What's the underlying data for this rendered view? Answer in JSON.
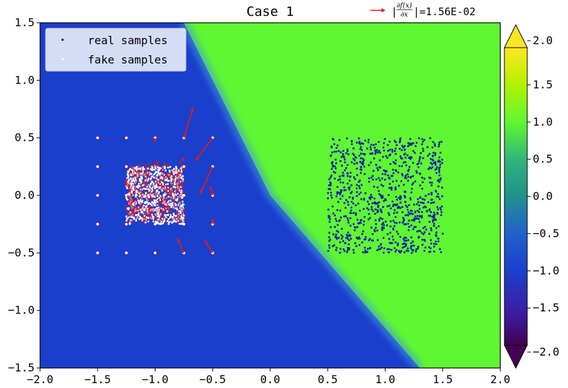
{
  "chart_data": {
    "type": "scatter",
    "title": "Case 1",
    "xlim": [
      -2.0,
      2.0
    ],
    "ylim": [
      -1.5,
      1.5
    ],
    "xticks": [
      "−2.0",
      "−1.5",
      "−1.0",
      "−0.5",
      "0.0",
      "0.5",
      "1.0",
      "1.5",
      "2.0"
    ],
    "yticks": [
      "−1.5",
      "−1.0",
      "−0.5",
      "0.0",
      "0.5",
      "1.0",
      "1.5"
    ],
    "xtick_values": [
      -2.0,
      -1.5,
      -1.0,
      -0.5,
      0.0,
      0.5,
      1.0,
      1.5,
      2.0
    ],
    "ytick_values": [
      -1.5,
      -1.0,
      -0.5,
      0.0,
      0.5,
      1.0,
      1.5
    ],
    "colorbar": {
      "range": [
        -2.0,
        2.0
      ],
      "ticks": [
        "−2.0",
        "−1.5",
        "−1.0",
        "−0.5",
        "0.0",
        "0.5",
        "1.0",
        "1.5",
        "2.0"
      ],
      "tick_values": [
        -2.0,
        -1.5,
        -1.0,
        -0.5,
        0.0,
        0.5,
        1.0,
        1.5,
        2.0
      ],
      "extend": "both",
      "colormap": "viridis-like"
    },
    "background": {
      "description": "decision surface",
      "low_color": "#1a3fcc",
      "high_color": "#5ff731",
      "boundary_line": [
        [
          -0.75,
          1.5
        ],
        [
          0.0,
          0.0
        ],
        [
          1.3,
          -1.5
        ]
      ]
    },
    "series": [
      {
        "name": "real samples",
        "kind": "uniform_square",
        "x_range": [
          0.5,
          1.5
        ],
        "y_range": [
          -0.5,
          0.5
        ],
        "count": 900,
        "color": "#1418a8"
      },
      {
        "name": "fake samples",
        "kind": "grid_points",
        "grid_x": [
          -1.5,
          -1.25,
          -1.0,
          -0.75,
          -0.5
        ],
        "grid_y": [
          -0.5,
          -0.25,
          0.0,
          0.25,
          0.5
        ],
        "color": "#ffffff"
      },
      {
        "name": "fake samples",
        "kind": "uniform_square",
        "x_range": [
          -1.25,
          -0.75
        ],
        "y_range": [
          -0.25,
          0.25
        ],
        "count": 700,
        "color": "#ffffff"
      }
    ],
    "gradient_arrows": [
      {
        "x": -0.75,
        "y": 0.5,
        "dx": 0.08,
        "dy": 0.26
      },
      {
        "x": -0.5,
        "y": 0.5,
        "dx": -0.15,
        "dy": -0.2
      },
      {
        "x": -0.5,
        "y": 0.25,
        "dx": -0.11,
        "dy": -0.24
      },
      {
        "x": -0.5,
        "y": 0.0,
        "dx": -0.02,
        "dy": 0.08
      },
      {
        "x": -0.5,
        "y": -0.25,
        "dx": 0.0,
        "dy": 0.05
      },
      {
        "x": -0.75,
        "y": -0.5,
        "dx": -0.06,
        "dy": 0.13
      },
      {
        "x": -0.5,
        "y": -0.5,
        "dx": -0.07,
        "dy": 0.11
      },
      {
        "x": -1.0,
        "y": 0.5,
        "dx": 0.0,
        "dy": -0.04
      },
      {
        "x": -0.78,
        "y": 0.28,
        "dx": 0.03,
        "dy": 0.05
      }
    ],
    "arrow_color": "#e31a1c",
    "legend": {
      "placement": "top-left",
      "entries": [
        {
          "label": "real samples",
          "color": "#1418a8"
        },
        {
          "label": "fake samples",
          "color": "#ffffff"
        }
      ]
    },
    "gradient_key": {
      "label_value": "|=1.56E-02"
    }
  }
}
